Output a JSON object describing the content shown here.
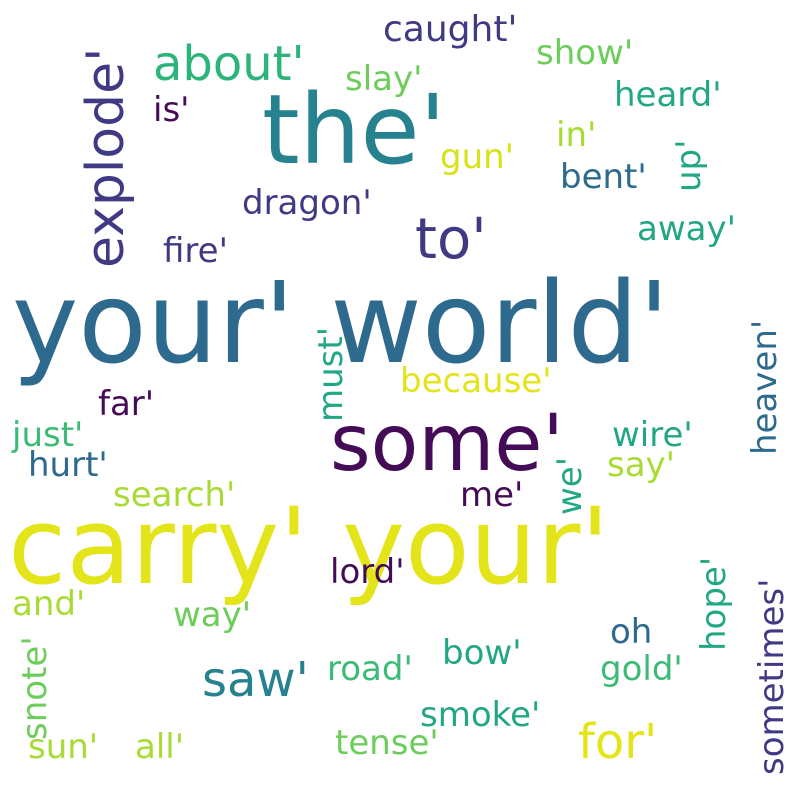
{
  "words": [
    {
      "text": "carry' your'",
      "color": "#e4e41b",
      "orientation": "horizontal"
    },
    {
      "text": "your' world'",
      "color": "#2d6a8e",
      "orientation": "horizontal"
    },
    {
      "text": "the'",
      "color": "#26828e",
      "orientation": "horizontal"
    },
    {
      "text": "some'",
      "color": "#440c56",
      "orientation": "horizontal"
    },
    {
      "text": "explode'",
      "color": "#3f3a83",
      "orientation": "vertical"
    },
    {
      "text": "about'",
      "color": "#2db47a",
      "orientation": "horizontal"
    },
    {
      "text": "to'",
      "color": "#3f3a83",
      "orientation": "horizontal"
    },
    {
      "text": "caught'",
      "color": "#3f3a83",
      "orientation": "horizontal"
    },
    {
      "text": "show'",
      "color": "#6ccd5a",
      "orientation": "horizontal"
    },
    {
      "text": "slay'",
      "color": "#6ccd5a",
      "orientation": "horizontal"
    },
    {
      "text": "heard'",
      "color": "#22a785",
      "orientation": "horizontal"
    },
    {
      "text": "is'",
      "color": "#440c56",
      "orientation": "horizontal"
    },
    {
      "text": "in'",
      "color": "#a8db34",
      "orientation": "horizontal"
    },
    {
      "text": "up'",
      "color": "#22a785",
      "orientation": "vertical"
    },
    {
      "text": "gun'",
      "color": "#d8e219",
      "orientation": "horizontal"
    },
    {
      "text": "bent'",
      "color": "#2d6a8e",
      "orientation": "horizontal"
    },
    {
      "text": "dragon'",
      "color": "#3f3a83",
      "orientation": "horizontal"
    },
    {
      "text": "away'",
      "color": "#22a785",
      "orientation": "horizontal"
    },
    {
      "text": "fire'",
      "color": "#3f3a83",
      "orientation": "horizontal"
    },
    {
      "text": "heaven'",
      "color": "#2d6a8e",
      "orientation": "vertical"
    },
    {
      "text": "must'",
      "color": "#22a785",
      "orientation": "vertical"
    },
    {
      "text": "because'",
      "color": "#e4e41b",
      "orientation": "horizontal"
    },
    {
      "text": "far'",
      "color": "#440c56",
      "orientation": "horizontal"
    },
    {
      "text": "just'",
      "color": "#3bbb75",
      "orientation": "horizontal"
    },
    {
      "text": "wire'",
      "color": "#22a785",
      "orientation": "horizontal"
    },
    {
      "text": "hurt'",
      "color": "#2d6a8e",
      "orientation": "horizontal"
    },
    {
      "text": "say'",
      "color": "#a8db34",
      "orientation": "horizontal"
    },
    {
      "text": "we'",
      "color": "#22a785",
      "orientation": "vertical"
    },
    {
      "text": "search'",
      "color": "#a8db34",
      "orientation": "horizontal"
    },
    {
      "text": "me'",
      "color": "#440c56",
      "orientation": "horizontal"
    },
    {
      "text": "lord'",
      "color": "#440c56",
      "orientation": "horizontal"
    },
    {
      "text": "and'",
      "color": "#a8db34",
      "orientation": "horizontal"
    },
    {
      "text": "way'",
      "color": "#6ccd5a",
      "orientation": "horizontal"
    },
    {
      "text": "hope'",
      "color": "#22a785",
      "orientation": "vertical"
    },
    {
      "text": "sometimes'",
      "color": "#3f3a83",
      "orientation": "vertical"
    },
    {
      "text": "oh",
      "color": "#2d6a8e",
      "orientation": "horizontal"
    },
    {
      "text": "saw'",
      "color": "#26828e",
      "orientation": "horizontal"
    },
    {
      "text": "bow'",
      "color": "#22a785",
      "orientation": "horizontal"
    },
    {
      "text": "road'",
      "color": "#3bbb75",
      "orientation": "horizontal"
    },
    {
      "text": "gold'",
      "color": "#3bbb75",
      "orientation": "horizontal"
    },
    {
      "text": "snote'",
      "color": "#6ccd5a",
      "orientation": "vertical"
    },
    {
      "text": "smoke'",
      "color": "#22a785",
      "orientation": "horizontal"
    },
    {
      "text": "for'",
      "color": "#e4e41b",
      "orientation": "horizontal"
    },
    {
      "text": "sun'",
      "color": "#a8db34",
      "orientation": "horizontal"
    },
    {
      "text": "all'",
      "color": "#a8db34",
      "orientation": "horizontal"
    },
    {
      "text": "tense'",
      "color": "#6ccd5a",
      "orientation": "horizontal"
    }
  ]
}
